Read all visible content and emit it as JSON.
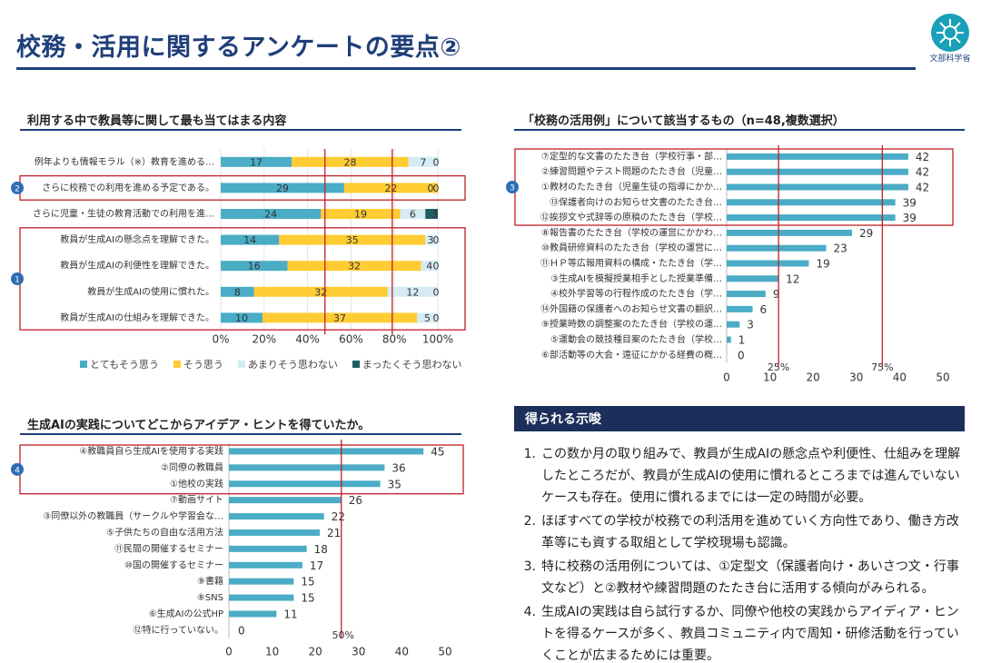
{
  "page": {
    "title": "校務・活用に関するアンケートの要点②",
    "logo_text": "文部科学省"
  },
  "sections": {
    "chart1_title": "利用する中で教員等に関して最も当てはまる内容",
    "chart2_title": "「校務の活用例」について該当するもの（n=48,複数選択）",
    "chart3_title": "生成AIの実践についてどこからアイデア・ヒントを得ていたか。"
  },
  "summary": {
    "header": "得られる示唆",
    "items": [
      {
        "num": "1.",
        "text": "この数か月の取り組みで、教員が生成AIの懸念点や利便性、仕組みを理解したところだが、教員が生成AIの使用に慣れるところまでは進んでいないケースも存在。使用に慣れるまでには一定の時間が必要。"
      },
      {
        "num": "2.",
        "text": "ほぼすべての学校が校務での利活用を進めていく方向性であり、働き方改革等にも資する取組として学校現場も認識。"
      },
      {
        "num": "3.",
        "text": "特に校務の活用例については、①定型文（保護者向け・あいさつ文・行事文など）と②教材や練習問題のたたき台に活用する傾向がみられる。"
      },
      {
        "num": "4.",
        "text": "生成AIの実践は自ら試行するか、同僚や他校の実践からアイディア・ヒントを得るケースが多く、教員コミュニティ内で周知・研修活動を行っていくことが広まるためには重要。"
      }
    ]
  },
  "colors": {
    "navy": "#1f3f7a",
    "teal": "#4bacc6",
    "yellow": "#ffcc33",
    "light": "#d5ecf5",
    "dark": "#1f5f63",
    "red": "#c0202a"
  },
  "chart_data": [
    {
      "type": "bar",
      "orientation": "horizontal-stacked-100",
      "title": "利用する中で教員等に関して最も当てはまる内容",
      "categories": [
        "例年よりも情報モラル（※）教育を進める…",
        "さらに校務での利用を進める予定である。",
        "さらに児童・生徒の教育活動での利用を進…",
        "教員が生成AIの懸念点を理解できた。",
        "教員が生成AIの利便性を理解できた。",
        "教員が生成AIの使用に慣れた。",
        "教員が生成AIの仕組みを理解できた。"
      ],
      "series": [
        {
          "name": "とてもそう思う",
          "values": [
            17,
            29,
            24,
            14,
            16,
            8,
            10
          ]
        },
        {
          "name": "そう思う",
          "values": [
            28,
            22,
            19,
            35,
            32,
            32,
            37
          ]
        },
        {
          "name": "あまりそう思わない",
          "values": [
            7,
            0,
            6,
            3,
            4,
            12,
            5
          ]
        },
        {
          "name": "まったくそう思わない",
          "values": [
            0,
            0,
            3,
            0,
            0,
            0,
            0
          ]
        }
      ],
      "xticks": [
        "0%",
        "20%",
        "40%",
        "60%",
        "80%",
        "100%"
      ],
      "reference_lines": [
        0.48,
        0.79
      ],
      "annotations": [
        {
          "label": "2",
          "rows": [
            1
          ]
        },
        {
          "label": "1",
          "rows": [
            3,
            4,
            5,
            6
          ]
        }
      ],
      "legend": "bottom"
    },
    {
      "type": "bar",
      "orientation": "horizontal",
      "title": "「校務の活用例」について該当するもの（n=48,複数選択）",
      "categories": [
        "⑦定型的な文書のたたき台（学校行事・部…",
        "②練習問題やテスト問題のたたき台（児童…",
        "①教材のたたき台（児童生徒の指導にかか…",
        "⑬保護者向けのお知らせ文書のたたき台…",
        "⑫挨拶文や式辞等の原稿のたたき台（学校…",
        "⑧報告書のたたき台（学校の運営にかかわ…",
        "⑩教員研修資料のたたき台（学校の運営に…",
        "⑪ＨＰ等広報用資料の構成・たたき台（学…",
        "③生成AIを模擬授業相手とした授業準備…",
        "④校外学習等の行程作成のたたき台（学…",
        "⑭外国籍の保護者へのお知らせ文書の翻訳…",
        "⑨授業時数の調整案のたたき台（学校の運…",
        "⑤運動会の競技種目案のたたき台（学校…",
        "⑥部活動等の大会・遠征にかかる経費の概…"
      ],
      "values": [
        42,
        42,
        42,
        39,
        39,
        29,
        23,
        19,
        12,
        9,
        6,
        3,
        1,
        0
      ],
      "xlim": [
        0,
        50
      ],
      "xticks": [
        "0",
        "10",
        "20",
        "30",
        "40",
        "50"
      ],
      "reference_lines": [
        {
          "value": 12,
          "label": "25%"
        },
        {
          "value": 36,
          "label": "75%"
        }
      ],
      "annotations": [
        {
          "label": "3",
          "rows": [
            0,
            1,
            2,
            3,
            4
          ]
        }
      ]
    },
    {
      "type": "bar",
      "orientation": "horizontal",
      "title": "生成AIの実践についてどこからアイデア・ヒントを得ていたか。",
      "categories": [
        "④教職員自ら生成AIを使用する実践",
        "②同僚の教職員",
        "①他校の実践",
        "⑦動画サイト",
        "③同僚以外の教職員（サークルや学習会な…",
        "⑤子供たちの自由な活用方法",
        "⑪民間の開催するセミナー",
        "⑩国の開催するセミナー",
        "⑨書籍",
        "⑧SNS",
        "⑥生成AIの公式HP",
        "⑫特に行っていない。"
      ],
      "values": [
        45,
        36,
        35,
        26,
        22,
        21,
        18,
        17,
        15,
        15,
        11,
        0
      ],
      "xlim": [
        0,
        50
      ],
      "xticks": [
        "0",
        "10",
        "20",
        "30",
        "40",
        "50"
      ],
      "reference_lines": [
        {
          "value": 26,
          "label": "50%"
        }
      ],
      "annotations": [
        {
          "label": "4",
          "rows": [
            0,
            1,
            2
          ]
        }
      ]
    }
  ]
}
